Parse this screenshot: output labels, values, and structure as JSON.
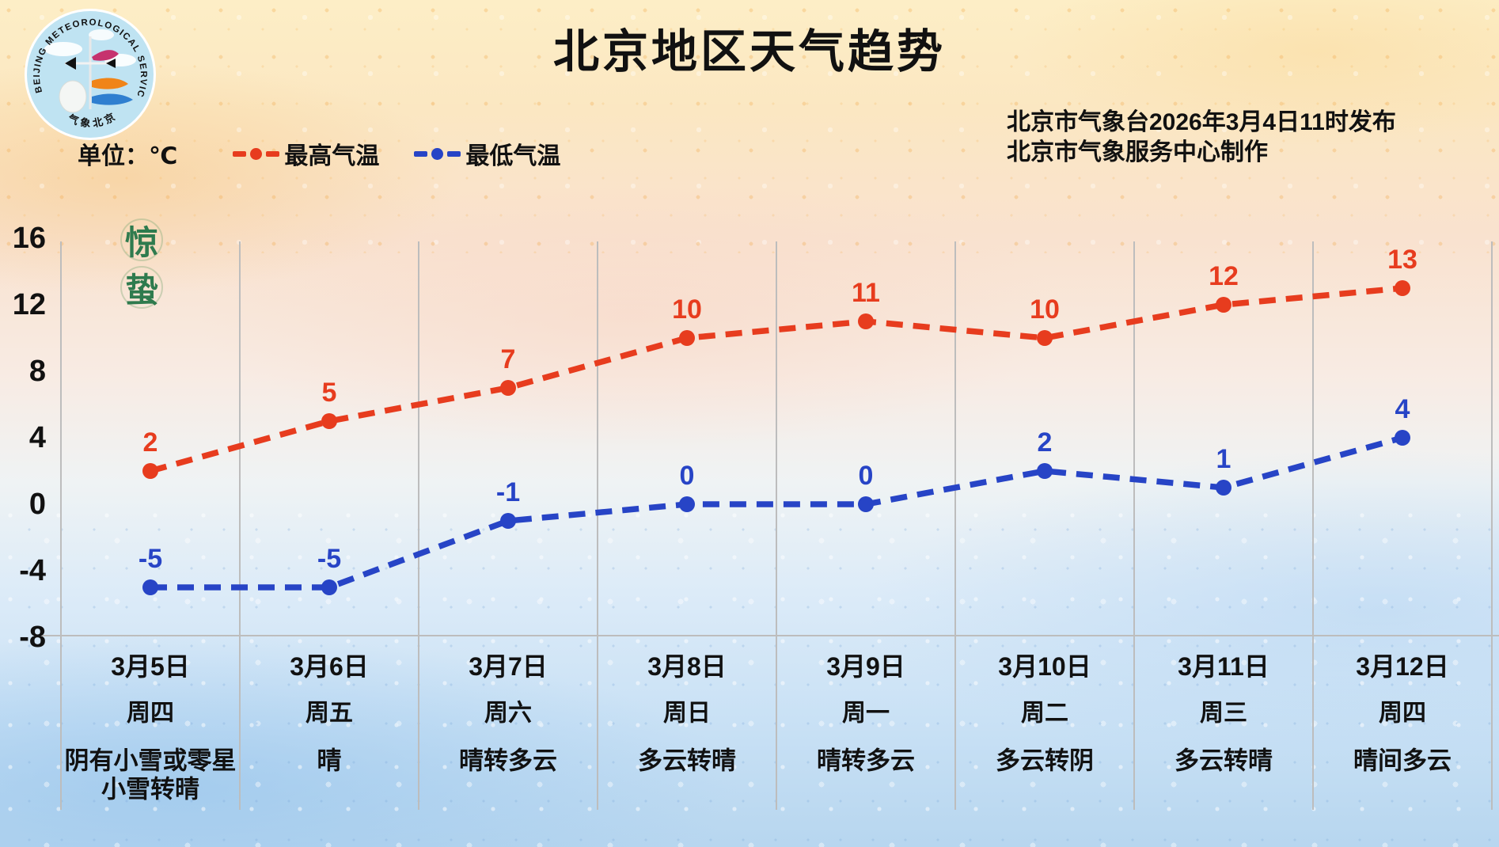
{
  "title": "北京地区天气趋势",
  "logo": {
    "ring_text": "BEIJING METEOROLOGICAL SERVICE",
    "bottom_text": "气象北京"
  },
  "legend": {
    "unit_label": "单位：℃",
    "items": [
      {
        "label": "最高气温",
        "color": "#e73c1e"
      },
      {
        "label": "最低气温",
        "color": "#2744c6"
      }
    ]
  },
  "source": {
    "line1": "北京市气象台2026年3月4日11时发布",
    "line2": "北京市气象服务中心制作"
  },
  "solar_term": {
    "chars": [
      "惊",
      "蛰"
    ],
    "color": "#2f7b4e"
  },
  "chart_data": {
    "type": "line",
    "title": "北京地区天气趋势",
    "unit": "℃",
    "style": "dashed-with-dots",
    "grid": "vertical-day-columns",
    "legend_position": "top-left",
    "y_ticks": [
      16,
      12,
      8,
      4,
      0,
      -4,
      -8
    ],
    "ylim": [
      -8,
      16
    ],
    "gridline_color": "#bdbdbd",
    "categories": [
      {
        "date": "3月5日",
        "weekday": "周四",
        "weather": [
          "阴有小雪或零星",
          "小雪转晴"
        ]
      },
      {
        "date": "3月6日",
        "weekday": "周五",
        "weather": [
          "晴"
        ]
      },
      {
        "date": "3月7日",
        "weekday": "周六",
        "weather": [
          "晴转多云"
        ]
      },
      {
        "date": "3月8日",
        "weekday": "周日",
        "weather": [
          "多云转晴"
        ]
      },
      {
        "date": "3月9日",
        "weekday": "周一",
        "weather": [
          "晴转多云"
        ]
      },
      {
        "date": "3月10日",
        "weekday": "周二",
        "weather": [
          "多云转阴"
        ]
      },
      {
        "date": "3月11日",
        "weekday": "周三",
        "weather": [
          "多云转晴"
        ]
      },
      {
        "date": "3月12日",
        "weekday": "周四",
        "weather": [
          "晴间多云"
        ]
      }
    ],
    "series": [
      {
        "name": "最高气温",
        "color": "#e73c1e",
        "values": [
          2,
          5,
          7,
          10,
          11,
          10,
          12,
          13
        ]
      },
      {
        "name": "最低气温",
        "color": "#2744c6",
        "values": [
          -5,
          -5,
          -1,
          0,
          0,
          2,
          1,
          4
        ]
      }
    ]
  }
}
